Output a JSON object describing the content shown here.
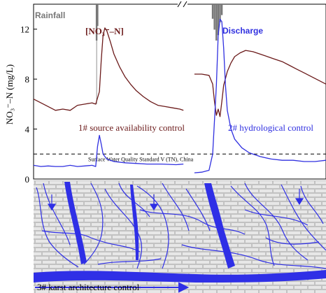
{
  "chart_data": {
    "type": "line",
    "ylabel": "NO₃⁻–N (mg/L)",
    "yticks": [
      0,
      4,
      8,
      12
    ],
    "ylim": [
      0,
      14
    ],
    "labels": {
      "rainfall": "Rainfall",
      "nitrate": "[NO₃⁻–N]",
      "discharge": "Discharge",
      "annotation_1": "1# source availability control",
      "annotation_2": "2# hydrological control",
      "annotation_3": "3# karst architecture control",
      "standard": "Surface Water Quality Standard V (TN), China"
    },
    "standard_line": 2.0,
    "series": [
      {
        "name": "[NO₃⁻–N]",
        "color": "#6b1a1a",
        "segments": [
          [
            [
              0,
              6.4
            ],
            [
              4,
              6.1
            ],
            [
              8,
              5.8
            ],
            [
              12,
              5.5
            ],
            [
              16,
              5.6
            ],
            [
              20,
              5.5
            ],
            [
              24,
              5.9
            ],
            [
              28,
              6.0
            ],
            [
              32,
              6.1
            ],
            [
              34,
              6.0
            ],
            [
              36,
              7.0
            ],
            [
              37,
              9.5
            ],
            [
              38,
              11.5
            ],
            [
              39,
              12.1
            ],
            [
              40,
              11.9
            ],
            [
              42,
              11.0
            ],
            [
              44,
              10.0
            ],
            [
              47,
              9.0
            ],
            [
              50,
              8.2
            ],
            [
              53,
              7.6
            ],
            [
              56,
              7.1
            ],
            [
              60,
              6.6
            ],
            [
              64,
              6.2
            ],
            [
              68,
              5.9
            ],
            [
              72,
              5.8
            ],
            [
              76,
              5.7
            ],
            [
              80,
              5.6
            ],
            [
              82,
              5.5
            ]
          ],
          [
            [
              88,
              8.4
            ],
            [
              92,
              8.4
            ],
            [
              96,
              8.3
            ],
            [
              98,
              7.6
            ],
            [
              99,
              6.2
            ],
            [
              100,
              5.1
            ],
            [
              101,
              5.6
            ],
            [
              102,
              5.0
            ],
            [
              103,
              6.2
            ],
            [
              104,
              7.5
            ],
            [
              106,
              8.6
            ],
            [
              108,
              9.3
            ],
            [
              110,
              9.8
            ],
            [
              113,
              10.1
            ],
            [
              116,
              10.3
            ],
            [
              120,
              10.2
            ],
            [
              124,
              10.0
            ],
            [
              128,
              9.8
            ],
            [
              132,
              9.6
            ],
            [
              136,
              9.4
            ],
            [
              140,
              9.1
            ],
            [
              144,
              8.8
            ],
            [
              148,
              8.5
            ],
            [
              152,
              8.2
            ],
            [
              156,
              7.9
            ],
            [
              160,
              7.6
            ]
          ]
        ]
      },
      {
        "name": "Discharge",
        "color": "#3030e0",
        "segments": [
          [
            [
              0,
              1.1
            ],
            [
              4,
              1.0
            ],
            [
              8,
              1.05
            ],
            [
              12,
              1.0
            ],
            [
              16,
              1.0
            ],
            [
              20,
              1.1
            ],
            [
              24,
              1.0
            ],
            [
              28,
              1.05
            ],
            [
              32,
              1.1
            ],
            [
              34,
              1.0
            ],
            [
              35,
              2.6
            ],
            [
              36,
              3.5
            ],
            [
              37,
              2.8
            ],
            [
              38,
              2.0
            ],
            [
              40,
              1.6
            ],
            [
              44,
              1.4
            ],
            [
              50,
              1.3
            ],
            [
              56,
              1.25
            ],
            [
              62,
              1.2
            ],
            [
              70,
              1.2
            ],
            [
              78,
              1.15
            ],
            [
              82,
              1.2
            ]
          ],
          [
            [
              88,
              0.5
            ],
            [
              92,
              0.55
            ],
            [
              96,
              0.7
            ],
            [
              98,
              2.0
            ],
            [
              100,
              7.5
            ],
            [
              101,
              11.5
            ],
            [
              102,
              12.8
            ],
            [
              103,
              12.6
            ],
            [
              104,
              10.5
            ],
            [
              105,
              7.5
            ],
            [
              106,
              5.5
            ],
            [
              108,
              4.0
            ],
            [
              110,
              3.2
            ],
            [
              114,
              2.5
            ],
            [
              118,
              2.1
            ],
            [
              124,
              1.8
            ],
            [
              130,
              1.6
            ],
            [
              136,
              1.5
            ],
            [
              142,
              1.5
            ],
            [
              148,
              1.4
            ],
            [
              154,
              1.4
            ],
            [
              160,
              1.5
            ]
          ]
        ]
      },
      {
        "name": "Rainfall",
        "color": "#777777",
        "bars": [
          [
            34.5,
            1.0
          ],
          [
            35.0,
            0.6
          ],
          [
            98.0,
            0.4
          ],
          [
            99.0,
            0.7
          ],
          [
            100.0,
            1.0
          ],
          [
            101.0,
            0.85
          ],
          [
            102.0,
            0.5
          ],
          [
            103.0,
            0.3
          ]
        ]
      }
    ]
  }
}
